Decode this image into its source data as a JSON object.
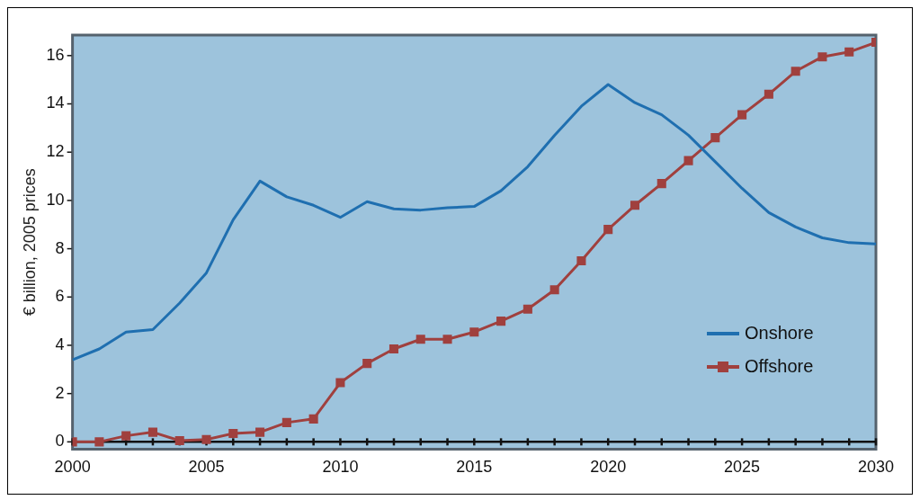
{
  "chart_data": {
    "type": "line",
    "ylabel": "€ billion, 2005 prices",
    "x": [
      2000,
      2001,
      2002,
      2003,
      2004,
      2005,
      2006,
      2007,
      2008,
      2009,
      2010,
      2011,
      2012,
      2013,
      2014,
      2015,
      2016,
      2017,
      2018,
      2019,
      2020,
      2021,
      2022,
      2023,
      2024,
      2025,
      2026,
      2027,
      2028,
      2029,
      2030
    ],
    "series": [
      {
        "name": "Onshore",
        "color": "#1f6fb0",
        "marker": "none",
        "values": [
          3.4,
          3.85,
          4.55,
          4.65,
          5.75,
          7.0,
          9.2,
          10.8,
          10.15,
          9.8,
          9.3,
          9.95,
          9.65,
          9.6,
          9.7,
          9.75,
          10.4,
          11.4,
          12.7,
          13.9,
          14.8,
          14.05,
          13.55,
          12.7,
          11.6,
          10.5,
          9.5,
          8.9,
          8.45,
          8.25,
          8.2
        ]
      },
      {
        "name": "Offshore",
        "color": "#a0403e",
        "marker": "square",
        "values": [
          0,
          0,
          0.25,
          0.4,
          0.05,
          0.1,
          0.35,
          0.4,
          0.8,
          0.95,
          2.45,
          3.25,
          3.85,
          4.25,
          4.25,
          4.55,
          5.0,
          5.5,
          6.3,
          7.5,
          8.8,
          9.8,
          10.7,
          11.65,
          12.6,
          13.55,
          14.4,
          15.35,
          15.95,
          16.15,
          16.55
        ]
      }
    ],
    "xlim": [
      2000,
      2030
    ],
    "xticks": [
      2000,
      {
        "value": 2001,
        "label": null
      },
      {
        "value": 2002,
        "label": null
      },
      {
        "value": 2003,
        "label": null
      },
      {
        "value": 2004,
        "label": null
      },
      2005,
      {
        "value": 2006,
        "label": null
      },
      {
        "value": 2007,
        "label": null
      },
      {
        "value": 2008,
        "label": null
      },
      {
        "value": 2009,
        "label": null
      },
      2010,
      {
        "value": 2011,
        "label": null
      },
      {
        "value": 2012,
        "label": null
      },
      {
        "value": 2013,
        "label": null
      },
      {
        "value": 2014,
        "label": null
      },
      2015,
      {
        "value": 2016,
        "label": null
      },
      {
        "value": 2017,
        "label": null
      },
      {
        "value": 2018,
        "label": null
      },
      {
        "value": 2019,
        "label": null
      },
      2020,
      {
        "value": 2021,
        "label": null
      },
      {
        "value": 2022,
        "label": null
      },
      {
        "value": 2023,
        "label": null
      },
      {
        "value": 2024,
        "label": null
      },
      2025,
      {
        "value": 2026,
        "label": null
      },
      {
        "value": 2027,
        "label": null
      },
      {
        "value": 2028,
        "label": null
      },
      {
        "value": 2029,
        "label": null
      },
      2030
    ],
    "ylim": [
      -0.3,
      16.85
    ],
    "yticks": [
      0,
      2,
      4,
      6,
      8,
      10,
      12,
      14,
      16
    ],
    "ref_lines": [
      {
        "axis": "y",
        "value": 0,
        "color": "#111111",
        "line_style": "solid"
      }
    ],
    "grid": false,
    "legend": "bottom right",
    "line_style": "solid"
  }
}
